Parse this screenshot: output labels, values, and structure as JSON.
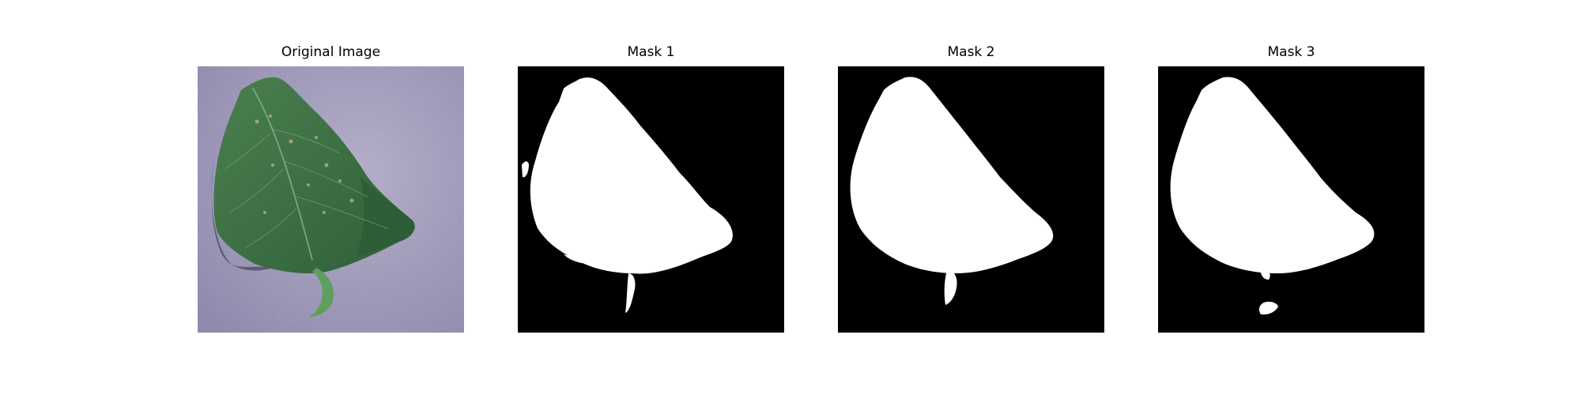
{
  "figure": {
    "panels": [
      {
        "title": "Original Image",
        "kind": "photo",
        "subject": "leaf"
      },
      {
        "title": "Mask 1",
        "kind": "mask",
        "colors": {
          "background": "#000000",
          "foreground": "#ffffff"
        }
      },
      {
        "title": "Mask 2",
        "kind": "mask",
        "colors": {
          "background": "#000000",
          "foreground": "#ffffff"
        }
      },
      {
        "title": "Mask 3",
        "kind": "mask",
        "colors": {
          "background": "#000000",
          "foreground": "#ffffff"
        }
      }
    ],
    "colors": {
      "photo_background": "#a7a1be",
      "leaf": "#3f7444",
      "leaf_dark": "#2b5a34",
      "leaf_vein": "#7fb08a",
      "stem": "#5f9e5e"
    }
  }
}
